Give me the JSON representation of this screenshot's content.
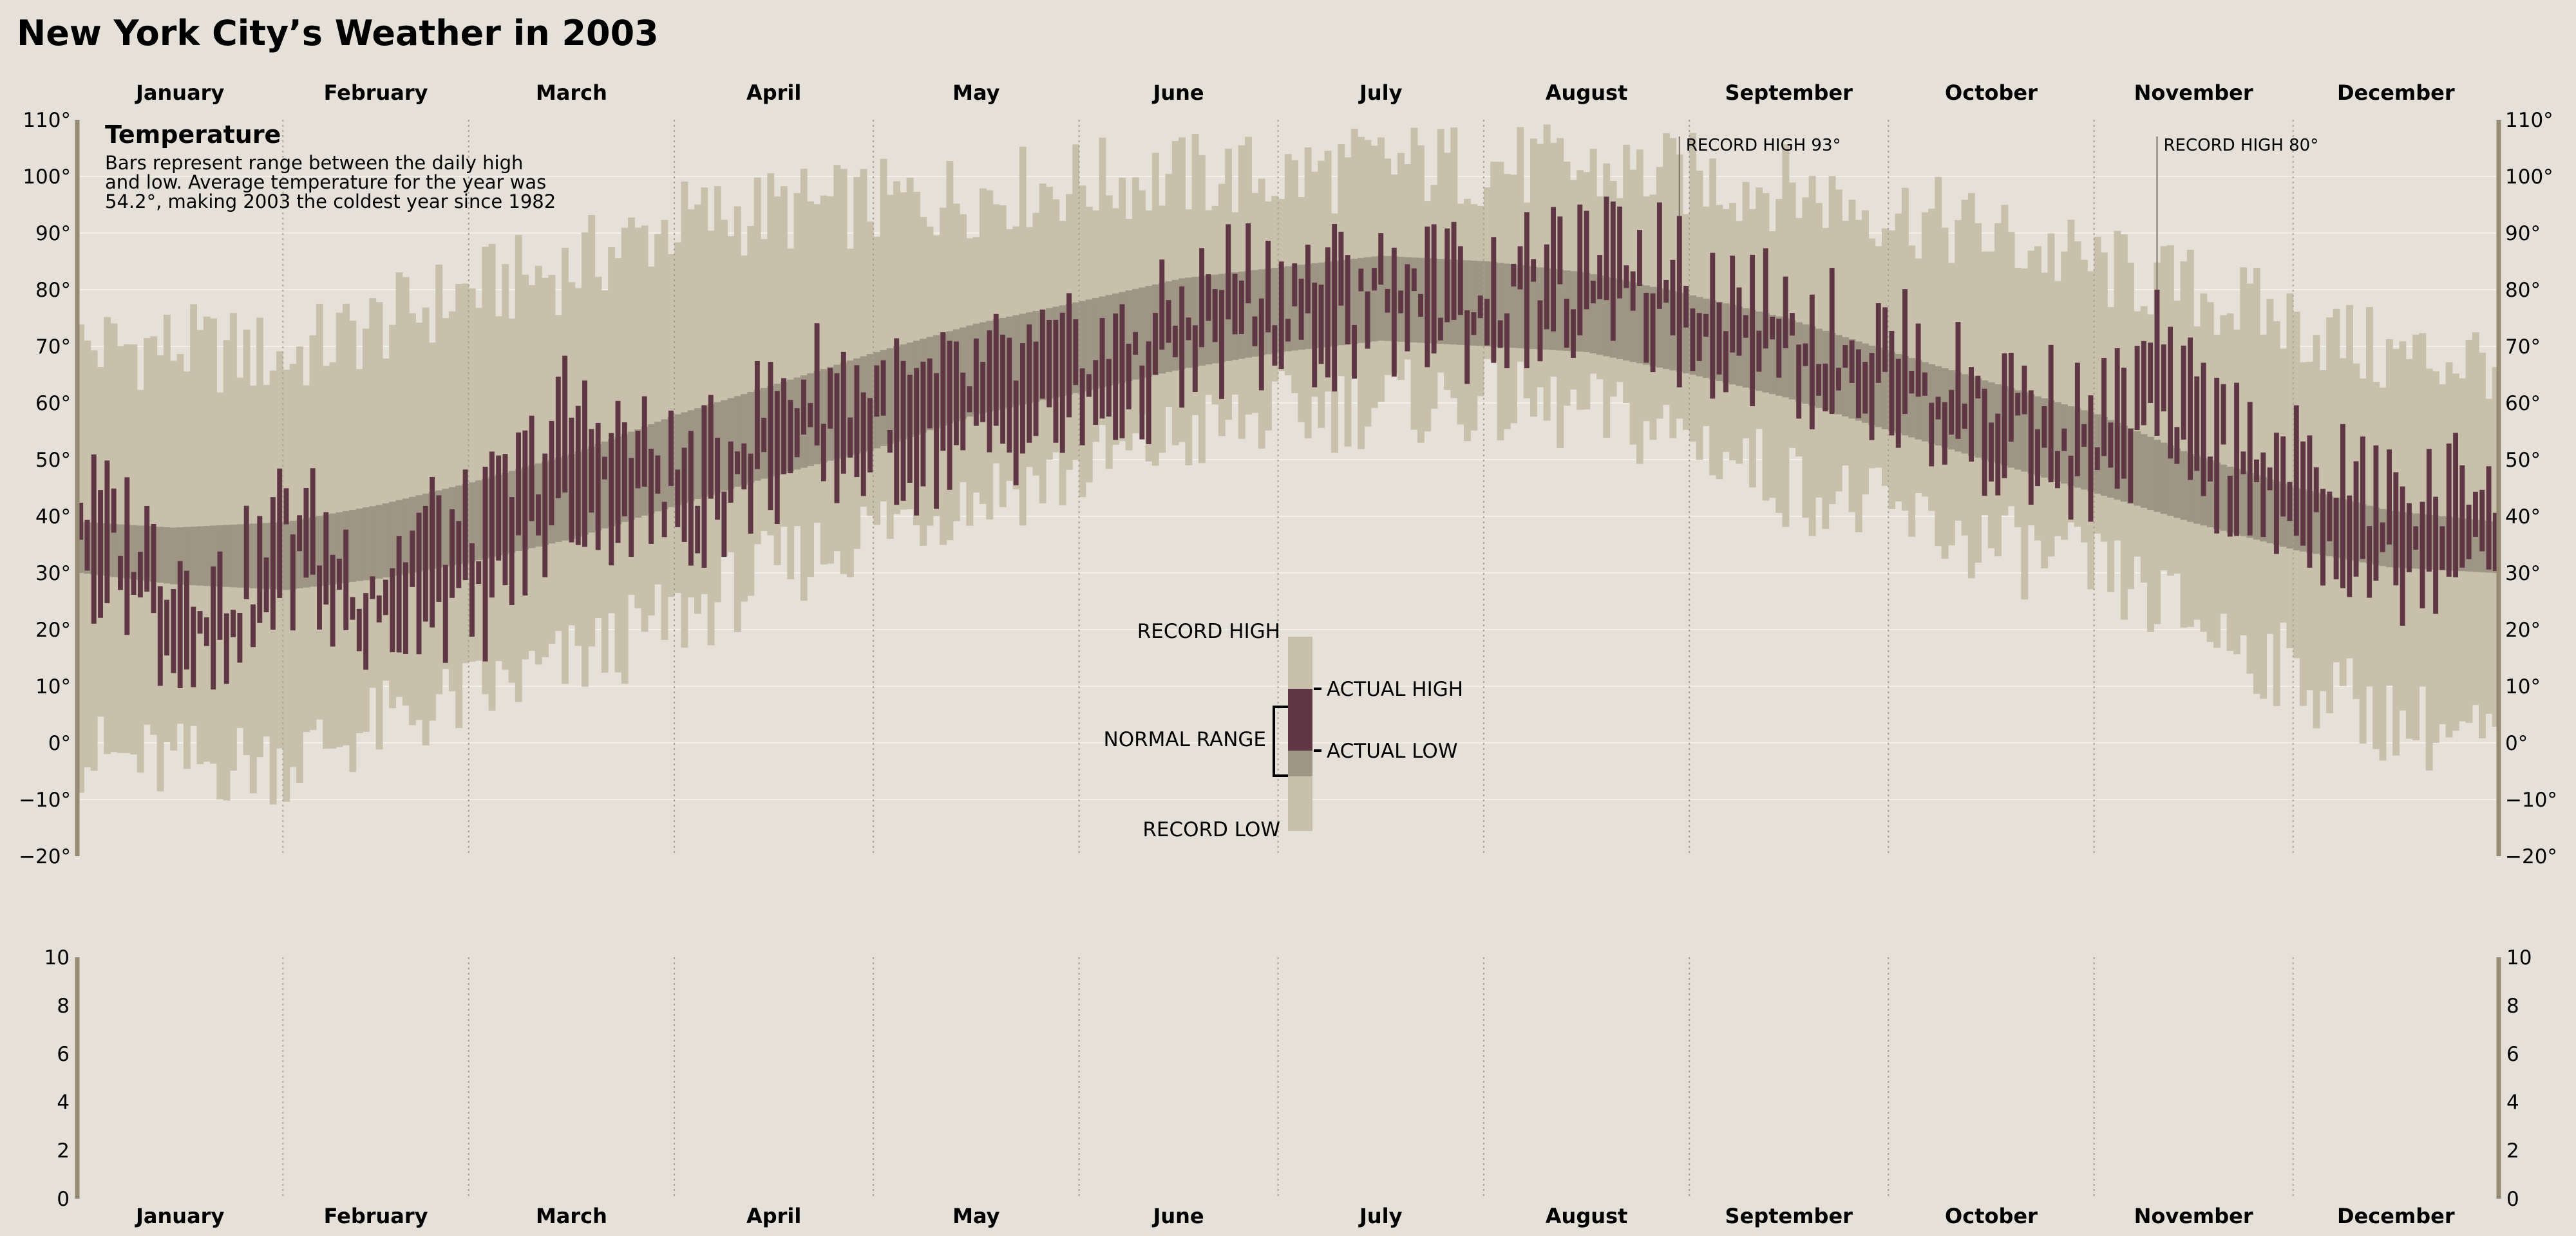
{
  "page": {
    "title": "New York City’s Weather in 2003"
  },
  "colors": {
    "background": "#e5e1d9",
    "record_range": "#c8c0aa",
    "normal_range": "#9e9584",
    "actual_range": "#5f3744",
    "axis_line": "#958a74",
    "gridline": "#f2efe8",
    "month_divider": "#a8a292"
  },
  "chart_data": [
    {
      "type": "bar",
      "title": "Temperature",
      "description_lines": [
        "Bars represent range between the daily high",
        "and low. Average temperature for the year was",
        "54.2°, making 2003 the coldest year since 1982"
      ],
      "months": [
        "January",
        "February",
        "March",
        "April",
        "May",
        "June",
        "July",
        "August",
        "September",
        "October",
        "November",
        "December"
      ],
      "month_days": [
        31,
        28,
        31,
        30,
        31,
        30,
        31,
        31,
        30,
        31,
        30,
        31
      ],
      "ylim": [
        -20,
        110
      ],
      "yticks": [
        -20,
        -10,
        0,
        10,
        20,
        30,
        40,
        50,
        60,
        70,
        80,
        90,
        100,
        110
      ],
      "ytick_labels": [
        "−20°",
        "−10°",
        "0°",
        "10°",
        "20°",
        "30°",
        "40°",
        "50°",
        "60°",
        "70°",
        "80°",
        "90°",
        "100°",
        "110°"
      ],
      "grid": true,
      "record_annotations": [
        {
          "day": 242,
          "value": 93,
          "label": "RECORD HIGH 93°"
        },
        {
          "day": 314,
          "value": 80,
          "label": "RECORD HIGH 80°"
        }
      ],
      "legend": {
        "record_high": "RECORD HIGH",
        "record_low": "RECORD LOW",
        "normal_range": "NORMAL RANGE",
        "actual_high": "ACTUAL HIGH",
        "actual_low": "ACTUAL LOW"
      },
      "series": [
        {
          "name": "record",
          "keys": [
            [
              1,
              70,
              -2
            ],
            [
              15,
              70,
              -4
            ],
            [
              32,
              68,
              -3
            ],
            [
              46,
              74,
              3
            ],
            [
              60,
              80,
              8
            ],
            [
              75,
              84,
              14
            ],
            [
              91,
              92,
              22
            ],
            [
              105,
              94,
              30
            ],
            [
              121,
              95,
              38
            ],
            [
              136,
              97,
              44
            ],
            [
              152,
              99,
              48
            ],
            [
              167,
              100,
              54
            ],
            [
              182,
              100,
              58
            ],
            [
              197,
              102,
              60
            ],
            [
              213,
              102,
              60
            ],
            [
              228,
              101,
              58
            ],
            [
              244,
              100,
              54
            ],
            [
              258,
              98,
              46
            ],
            [
              274,
              94,
              40
            ],
            [
              288,
              90,
              35
            ],
            [
              305,
              84,
              30
            ],
            [
              319,
              80,
              22
            ],
            [
              335,
              74,
              12
            ],
            [
              349,
              68,
              4
            ],
            [
              365,
              68,
              0
            ]
          ]
        },
        {
          "name": "normal",
          "keys": [
            [
              1,
              39,
              30
            ],
            [
              15,
              38,
              28
            ],
            [
              32,
              39,
              27
            ],
            [
              46,
              42,
              29
            ],
            [
              60,
              46,
              32
            ],
            [
              75,
              51,
              36
            ],
            [
              91,
              58,
              42
            ],
            [
              105,
              63,
              47
            ],
            [
              121,
              69,
              52
            ],
            [
              136,
              74,
              58
            ],
            [
              152,
              78,
              62
            ],
            [
              167,
              82,
              66
            ],
            [
              182,
              84,
              69
            ],
            [
              197,
              86,
              71
            ],
            [
              213,
              85,
              70
            ],
            [
              228,
              83,
              69
            ],
            [
              244,
              79,
              65
            ],
            [
              258,
              75,
              61
            ],
            [
              274,
              69,
              55
            ],
            [
              288,
              64,
              50
            ],
            [
              305,
              58,
              44
            ],
            [
              319,
              51,
              39
            ],
            [
              335,
              45,
              34
            ],
            [
              349,
              41,
              31
            ],
            [
              365,
              39,
              30
            ]
          ]
        },
        {
          "name": "actual",
          "keys": [
            [
              1,
              44,
              30
            ],
            [
              8,
              40,
              28
            ],
            [
              15,
              33,
              15
            ],
            [
              22,
              28,
              10
            ],
            [
              29,
              35,
              22
            ],
            [
              32,
              45,
              30
            ],
            [
              39,
              36,
              22
            ],
            [
              46,
              30,
              18
            ],
            [
              53,
              40,
              25
            ],
            [
              60,
              38,
              20
            ],
            [
              67,
              48,
              30
            ],
            [
              74,
              60,
              40
            ],
            [
              82,
              55,
              40
            ],
            [
              91,
              50,
              38
            ],
            [
              98,
              52,
              40
            ],
            [
              105,
              62,
              46
            ],
            [
              113,
              66,
              48
            ],
            [
              121,
              64,
              50
            ],
            [
              128,
              62,
              48
            ],
            [
              136,
              66,
              52
            ],
            [
              144,
              68,
              54
            ],
            [
              152,
              70,
              56
            ],
            [
              160,
              72,
              60
            ],
            [
              167,
              78,
              64
            ],
            [
              175,
              85,
              70
            ],
            [
              182,
              82,
              68
            ],
            [
              189,
              84,
              70
            ],
            [
              197,
              82,
              72
            ],
            [
              205,
              84,
              72
            ],
            [
              213,
              82,
              72
            ],
            [
              220,
              84,
              74
            ],
            [
              228,
              86,
              72
            ],
            [
              236,
              88,
              74
            ],
            [
              244,
              84,
              70
            ],
            [
              251,
              80,
              66
            ],
            [
              258,
              76,
              64
            ],
            [
              266,
              74,
              62
            ],
            [
              274,
              72,
              60
            ],
            [
              281,
              66,
              54
            ],
            [
              288,
              64,
              52
            ],
            [
              297,
              62,
              48
            ],
            [
              305,
              58,
              44
            ],
            [
              312,
              66,
              52
            ],
            [
              319,
              62,
              50
            ],
            [
              327,
              55,
              40
            ],
            [
              335,
              50,
              38
            ],
            [
              342,
              48,
              34
            ],
            [
              349,
              44,
              28
            ],
            [
              357,
              45,
              32
            ],
            [
              365,
              50,
              38
            ]
          ]
        }
      ]
    },
    {
      "type": "bar",
      "title": "",
      "ylim": [
        0,
        10
      ],
      "yticks": [
        0,
        2,
        4,
        6,
        8,
        10
      ],
      "ytick_labels": [
        "0",
        "2",
        "4",
        "6",
        "8",
        "10"
      ],
      "values": []
    }
  ]
}
